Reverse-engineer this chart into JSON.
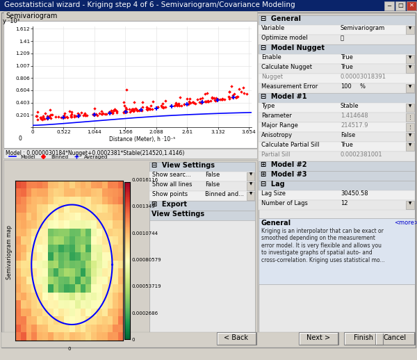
{
  "title": "Geostatistical wizard - Kriging step 4 of 6 - Semivariogram/Covariance Modeling",
  "bg_color": "#d4d0c8",
  "titlebar_color": "#0a246a",
  "semivariogram_label": "Semivariogram",
  "model_text": "Model : 0.0000030184*Nugget+0.0002381*Stable(214520,1.4146)",
  "y_label": "y ·10³",
  "x_label": "Distance (Meter), h ·10⁻⁵",
  "y_ticks": [
    0,
    0.201,
    0.403,
    0.604,
    0.806,
    1.007,
    1.209,
    1.41,
    1.612
  ],
  "x_ticks": [
    0,
    0.522,
    1.044,
    1.566,
    2.088,
    2.61,
    3.132,
    3.654
  ],
  "right_panel": {
    "general_label": "General",
    "variable_label": "Variable",
    "variable_value": "Semivariogram",
    "optimize_label": "Optimize model",
    "nugget_section": "Model Nugget",
    "enable_label": "Enable",
    "enable_value": "True",
    "calc_nugget_label": "Calculate Nugget",
    "calc_nugget_value": "True",
    "nugget_label": "Nugget",
    "nugget_value": "0.00003018391",
    "meas_error_label": "Measurement Error",
    "meas_error_value": "100",
    "meas_error_unit": "%",
    "model1_label": "Model #1",
    "type_label": "Type",
    "type_value": "Stable",
    "param_label": "Parameter",
    "param_value": "1.414648",
    "major_range_label": "Major Range",
    "major_range_value": "214517.9",
    "anisotropy_label": "Anisotropy",
    "anisotropy_value": "False",
    "calc_partial_label": "Calculate Partial Sill",
    "calc_partial_value": "True",
    "partial_sill_label": "Partial Sill",
    "partial_sill_value": "0.0002381001",
    "model2_label": "Model #2",
    "model3_label": "Model #3",
    "lag_label": "Lag",
    "lag_size_label": "Lag Size",
    "lag_size_value": "30450.58",
    "num_lags_label": "Number of Lags",
    "num_lags_value": "12",
    "more_label": "<more>",
    "help_text": "Kriging is an interpolator that can be exact or\nsmoothed depending on the measurement\nerror model. It is very flexible and allows you\nto investigate graphs of spatial auto- and\ncross-correlation. Kriging uses statistical mo..."
  },
  "view_settings": {
    "title": "View Settings",
    "show_search_label": "Show searc...",
    "show_search_value": "False",
    "show_all_label": "Show all lines",
    "show_all_value": "False",
    "show_points_label": "Show points",
    "show_points_value": "Binned and...",
    "export_label": "Export",
    "footer_label": "View Settings"
  },
  "colorbar_values": [
    "0.0016116",
    "0.001343",
    "0.0010744",
    "0.00080579",
    "0.00053719",
    "0.0002686",
    "0"
  ],
  "buttons": [
    [
      "< Back",
      312
    ],
    [
      "Next >",
      430
    ],
    [
      "Finish",
      495
    ],
    [
      "Cancel",
      540
    ]
  ]
}
